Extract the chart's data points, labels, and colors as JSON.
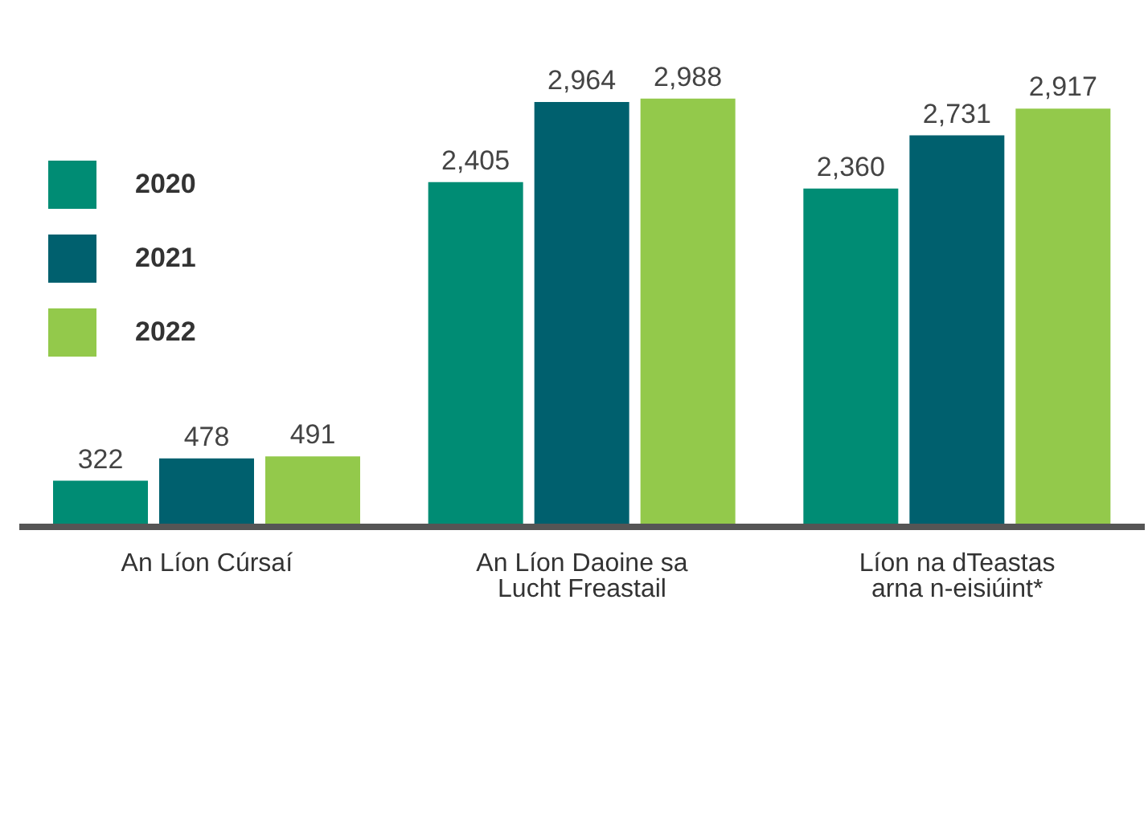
{
  "chart_data": {
    "type": "bar",
    "categories": [
      "An Líon Cúrsaí",
      "An Líon Daoine sa Lucht Freastail",
      "Líon na dTeastas arna n-eisiúint*"
    ],
    "series": [
      {
        "name": "2020",
        "color": "#008c74",
        "values": [
          322,
          2405,
          2360
        ],
        "value_labels": [
          "322",
          "2,405",
          "2,360"
        ]
      },
      {
        "name": "2021",
        "color": "#00606e",
        "values": [
          478,
          2964,
          2731
        ],
        "value_labels": [
          "478",
          "2,964",
          "2,731"
        ]
      },
      {
        "name": "2022",
        "color": "#93c94b",
        "values": [
          491,
          2988,
          2917
        ],
        "value_labels": [
          "491",
          "2,988",
          "2,917"
        ]
      }
    ],
    "legend": "top left",
    "grid": false
  }
}
